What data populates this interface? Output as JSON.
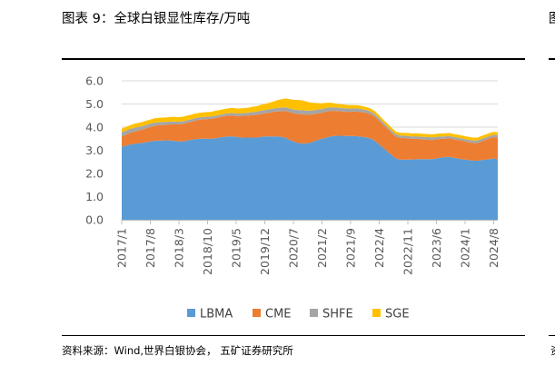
{
  "header": {
    "title": "图表 9：全球白银显性库存/万吨"
  },
  "footer": {
    "source": "资料来源：Wind,世界白银协会，    五矿证券研究所"
  },
  "edge": {
    "next_title_fragment": "图",
    "next_source_fragment": "资"
  },
  "chart_data": {
    "type": "area",
    "stacked": true,
    "title": "全球白银显性库存/万吨",
    "xlabel": "",
    "ylabel": "",
    "ylim": [
      0,
      6
    ],
    "yticks": [
      "0.0",
      "1.0",
      "2.0",
      "3.0",
      "4.0",
      "5.0",
      "6.0"
    ],
    "x_tick_labels": [
      "2017/1",
      "2017/8",
      "2018/3",
      "2018/10",
      "2019/5",
      "2019/12",
      "2020/7",
      "2021/2",
      "2021/9",
      "2022/4",
      "2022/11",
      "2023/6",
      "2024/1",
      "2024/8"
    ],
    "grid": true,
    "legend_position": "bottom",
    "x": [
      "2017/1",
      "2017/2",
      "2017/3",
      "2017/4",
      "2017/5",
      "2017/6",
      "2017/7",
      "2017/8",
      "2017/9",
      "2017/10",
      "2017/11",
      "2017/12",
      "2018/1",
      "2018/2",
      "2018/3",
      "2018/4",
      "2018/5",
      "2018/6",
      "2018/7",
      "2018/8",
      "2018/9",
      "2018/10",
      "2018/11",
      "2018/12",
      "2019/1",
      "2019/2",
      "2019/3",
      "2019/4",
      "2019/5",
      "2019/6",
      "2019/7",
      "2019/8",
      "2019/9",
      "2019/10",
      "2019/11",
      "2019/12",
      "2020/1",
      "2020/2",
      "2020/3",
      "2020/4",
      "2020/5",
      "2020/6",
      "2020/7",
      "2020/8",
      "2020/9",
      "2020/10",
      "2020/11",
      "2020/12",
      "2021/1",
      "2021/2",
      "2021/3",
      "2021/4",
      "2021/5",
      "2021/6",
      "2021/7",
      "2021/8",
      "2021/9",
      "2021/10",
      "2021/11",
      "2021/12",
      "2022/1",
      "2022/2",
      "2022/3",
      "2022/4",
      "2022/5",
      "2022/6",
      "2022/7",
      "2022/8",
      "2022/9",
      "2022/10",
      "2022/11",
      "2022/12",
      "2023/1",
      "2023/2",
      "2023/3",
      "2023/4",
      "2023/5",
      "2023/6",
      "2023/7",
      "2023/8",
      "2023/9",
      "2023/10",
      "2023/11",
      "2023/12",
      "2024/1",
      "2024/2",
      "2024/3",
      "2024/4",
      "2024/5",
      "2024/6",
      "2024/7",
      "2024/8",
      "2024/9"
    ],
    "series": [
      {
        "name": "LBMA",
        "color": "#5b9bd5",
        "values": [
          3.15,
          3.2,
          3.25,
          3.28,
          3.3,
          3.32,
          3.35,
          3.38,
          3.4,
          3.42,
          3.42,
          3.43,
          3.42,
          3.4,
          3.38,
          3.38,
          3.42,
          3.45,
          3.48,
          3.5,
          3.5,
          3.5,
          3.5,
          3.52,
          3.55,
          3.58,
          3.6,
          3.6,
          3.58,
          3.56,
          3.55,
          3.55,
          3.55,
          3.55,
          3.58,
          3.6,
          3.6,
          3.6,
          3.6,
          3.58,
          3.55,
          3.45,
          3.38,
          3.32,
          3.3,
          3.3,
          3.32,
          3.38,
          3.45,
          3.5,
          3.55,
          3.6,
          3.62,
          3.63,
          3.63,
          3.62,
          3.62,
          3.62,
          3.6,
          3.58,
          3.55,
          3.5,
          3.4,
          3.25,
          3.1,
          2.95,
          2.8,
          2.65,
          2.6,
          2.6,
          2.6,
          2.6,
          2.62,
          2.62,
          2.62,
          2.62,
          2.62,
          2.65,
          2.68,
          2.7,
          2.72,
          2.68,
          2.65,
          2.62,
          2.6,
          2.58,
          2.55,
          2.55,
          2.58,
          2.6,
          2.62,
          2.65,
          2.6
        ]
      },
      {
        "name": "CME",
        "color": "#ed7d31",
        "values": [
          0.45,
          0.47,
          0.5,
          0.52,
          0.55,
          0.57,
          0.6,
          0.63,
          0.65,
          0.66,
          0.67,
          0.68,
          0.7,
          0.72,
          0.74,
          0.76,
          0.77,
          0.78,
          0.8,
          0.82,
          0.84,
          0.85,
          0.86,
          0.88,
          0.88,
          0.89,
          0.9,
          0.9,
          0.9,
          0.92,
          0.94,
          0.95,
          0.97,
          0.98,
          0.99,
          1.0,
          1.02,
          1.05,
          1.08,
          1.1,
          1.15,
          1.2,
          1.22,
          1.25,
          1.26,
          1.25,
          1.22,
          1.18,
          1.15,
          1.12,
          1.12,
          1.1,
          1.08,
          1.06,
          1.05,
          1.04,
          1.04,
          1.05,
          1.06,
          1.06,
          1.06,
          1.05,
          1.04,
          1.02,
          1.0,
          0.98,
          0.96,
          0.95,
          0.94,
          0.93,
          0.92,
          0.9,
          0.88,
          0.86,
          0.84,
          0.83,
          0.82,
          0.82,
          0.81,
          0.8,
          0.8,
          0.8,
          0.8,
          0.8,
          0.78,
          0.77,
          0.76,
          0.76,
          0.8,
          0.85,
          0.9,
          0.92,
          0.95
        ]
      },
      {
        "name": "SHFE",
        "color": "#a5a5a5",
        "values": [
          0.18,
          0.18,
          0.17,
          0.17,
          0.16,
          0.15,
          0.15,
          0.14,
          0.14,
          0.13,
          0.13,
          0.12,
          0.12,
          0.12,
          0.11,
          0.11,
          0.11,
          0.11,
          0.11,
          0.1,
          0.1,
          0.1,
          0.1,
          0.1,
          0.1,
          0.1,
          0.1,
          0.11,
          0.11,
          0.11,
          0.12,
          0.12,
          0.13,
          0.13,
          0.14,
          0.14,
          0.15,
          0.15,
          0.15,
          0.16,
          0.16,
          0.16,
          0.16,
          0.17,
          0.17,
          0.17,
          0.17,
          0.17,
          0.16,
          0.16,
          0.16,
          0.16,
          0.15,
          0.15,
          0.15,
          0.15,
          0.14,
          0.14,
          0.14,
          0.13,
          0.12,
          0.12,
          0.11,
          0.11,
          0.1,
          0.1,
          0.1,
          0.1,
          0.1,
          0.1,
          0.1,
          0.1,
          0.11,
          0.11,
          0.12,
          0.12,
          0.12,
          0.11,
          0.11,
          0.1,
          0.1,
          0.1,
          0.1,
          0.1,
          0.1,
          0.1,
          0.11,
          0.11,
          0.11,
          0.1,
          0.1,
          0.1,
          0.1
        ]
      },
      {
        "name": "SGE",
        "color": "#ffc000",
        "values": [
          0.15,
          0.16,
          0.16,
          0.17,
          0.17,
          0.18,
          0.18,
          0.18,
          0.19,
          0.19,
          0.19,
          0.19,
          0.2,
          0.2,
          0.2,
          0.2,
          0.2,
          0.2,
          0.2,
          0.2,
          0.2,
          0.2,
          0.2,
          0.21,
          0.21,
          0.21,
          0.21,
          0.22,
          0.22,
          0.22,
          0.22,
          0.22,
          0.23,
          0.24,
          0.25,
          0.26,
          0.28,
          0.3,
          0.33,
          0.36,
          0.38,
          0.4,
          0.42,
          0.43,
          0.43,
          0.4,
          0.36,
          0.32,
          0.28,
          0.25,
          0.22,
          0.2,
          0.18,
          0.16,
          0.15,
          0.15,
          0.15,
          0.14,
          0.14,
          0.13,
          0.13,
          0.13,
          0.13,
          0.13,
          0.12,
          0.12,
          0.12,
          0.12,
          0.12,
          0.12,
          0.13,
          0.13,
          0.13,
          0.13,
          0.13,
          0.13,
          0.13,
          0.13,
          0.13,
          0.13,
          0.13,
          0.13,
          0.13,
          0.13,
          0.13,
          0.13,
          0.13,
          0.13,
          0.13,
          0.13,
          0.13,
          0.13,
          0.13
        ]
      }
    ]
  }
}
